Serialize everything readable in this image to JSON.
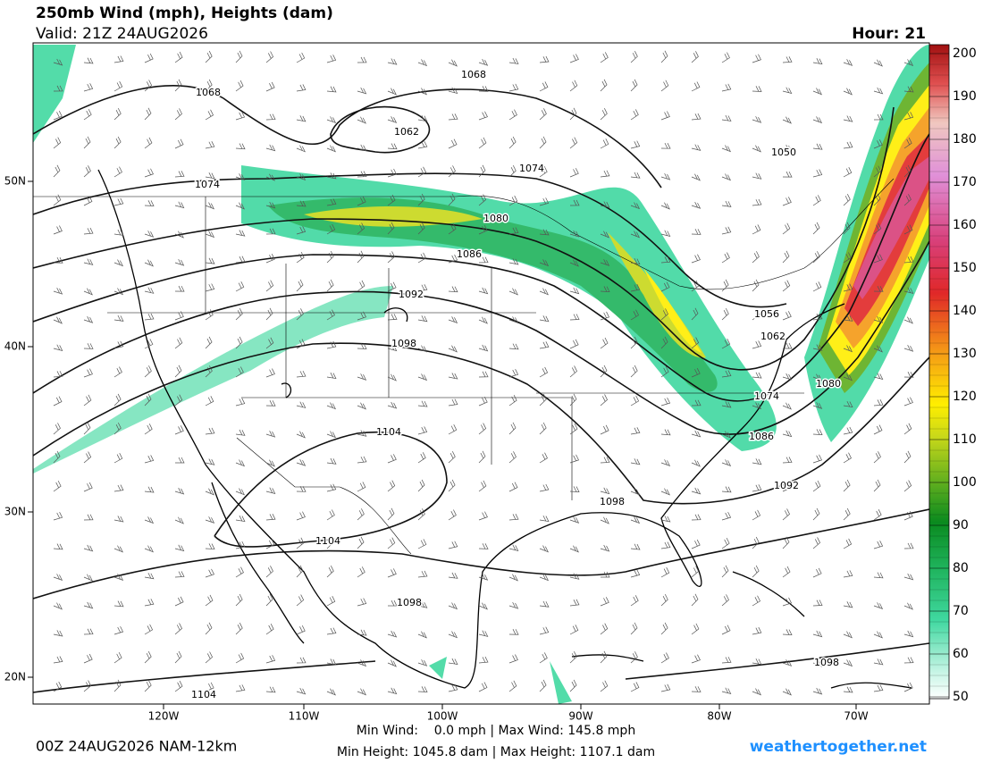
{
  "header": {
    "title": "250mb Wind (mph), Heights (dam)",
    "valid": "Valid: 21Z 24AUG2026",
    "hour": "Hour: 21"
  },
  "colorbar": {
    "ticks": [
      200,
      190,
      180,
      170,
      160,
      150,
      140,
      130,
      120,
      110,
      100,
      90,
      80,
      70,
      60,
      50
    ]
  },
  "axes": {
    "longitudes": [
      "120W",
      "110W",
      "100W",
      "90W",
      "80W",
      "70W"
    ],
    "latitudes": [
      "50N",
      "40N",
      "30N",
      "20N"
    ]
  },
  "contours": [
    1068,
    1068,
    1062,
    1074,
    1074,
    1050,
    1080,
    1086,
    1092,
    1098,
    1056,
    1062,
    1080,
    1074,
    1086,
    1104,
    1092,
    1098,
    1104,
    1098,
    1098,
    1104
  ],
  "footer": {
    "run": "00Z 24AUG2026 NAM-12km",
    "wind": "Min Wind:    0.0 mph | Max Wind: 145.8 mph",
    "height": "Min Height: 1045.8 dam | Max Height: 1107.1 dam",
    "site": "weathertogether.net"
  }
}
